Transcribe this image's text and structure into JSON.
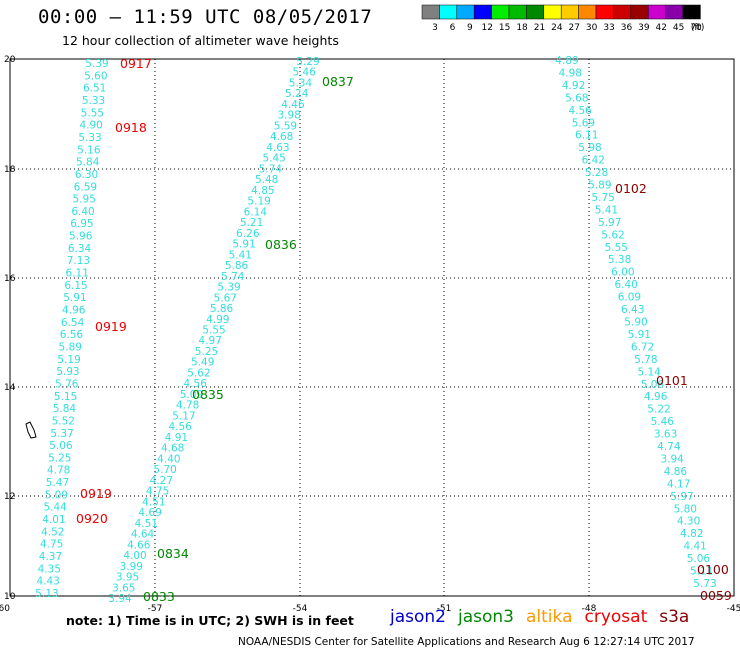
{
  "header": {
    "title": "00:00 – 11:59 UTC 08/05/2017",
    "subtitle": "12 hour collection of altimeter wave heights"
  },
  "color_scale": {
    "unit": "(ft)",
    "bins": [
      {
        "label": "3",
        "color": "#808080"
      },
      {
        "label": "6",
        "color": "#00ffff"
      },
      {
        "label": "9",
        "color": "#00aaff"
      },
      {
        "label": "12",
        "color": "#0000ff"
      },
      {
        "label": "15",
        "color": "#00ee00"
      },
      {
        "label": "18",
        "color": "#00bb00"
      },
      {
        "label": "21",
        "color": "#008800"
      },
      {
        "label": "24",
        "color": "#ffff00"
      },
      {
        "label": "27",
        "color": "#ffcc00"
      },
      {
        "label": "30",
        "color": "#ff8800"
      },
      {
        "label": "33",
        "color": "#ff0000"
      },
      {
        "label": "36",
        "color": "#cc0000"
      },
      {
        "label": "39",
        "color": "#990000"
      },
      {
        "label": "42",
        "color": "#cc00cc"
      },
      {
        "label": "45",
        "color": "#8800aa"
      },
      {
        "label": "70",
        "color": "#000000"
      }
    ]
  },
  "axes": {
    "x_ticks": [
      "-60",
      "-57",
      "-54",
      "-51",
      "-48",
      "-45"
    ],
    "y_ticks": [
      "20",
      "18",
      "16",
      "14",
      "12",
      "10"
    ]
  },
  "tracks": [
    {
      "name": "track-a",
      "color": "#33dddd",
      "values": [
        "5.39",
        "5.60",
        "6.51",
        "5.33",
        "5.55",
        "4.90",
        "5.33",
        "5.16",
        "5.84",
        "6.30",
        "6.59",
        "5.95",
        "6.40",
        "6.95",
        "5.96",
        "6.34",
        "7.13",
        "6.11",
        "6.15",
        "5.91",
        "4.96",
        "6.54",
        "6.56",
        "5.89",
        "5.19",
        "5.93",
        "5.76",
        "5.15",
        "5.84",
        "5.52",
        "5.37",
        "5.06",
        "5.25",
        "4.78",
        "5.47",
        "5.09",
        "5.44",
        "4.01",
        "4.52",
        "4.75",
        "4.37",
        "4.35",
        "4.43",
        "5.13"
      ]
    },
    {
      "name": "track-b",
      "color": "#33dddd",
      "values": [
        "5.29",
        "5.46",
        "5.34",
        "5.24",
        "4.46",
        "3.98",
        "5.59",
        "4.68",
        "4.63",
        "5.45",
        "5.74",
        "5.48",
        "4.85",
        "5.19",
        "6.14",
        "5.21",
        "6.26",
        "5.91",
        "5.41",
        "5.86",
        "5.74",
        "5.39",
        "5.67",
        "5.86",
        "4.99",
        "5.55",
        "4.97",
        "5.25",
        "5.49",
        "5.62",
        "4.56",
        "5.09",
        "4.78",
        "5.17",
        "4.56",
        "4.91",
        "4.68",
        "4.40",
        "5.70",
        "4.27",
        "4.75",
        "4.51",
        "4.69",
        "4.51",
        "4.64",
        "4.66",
        "4.00",
        "3.99",
        "3.95",
        "3.65",
        "3.94"
      ]
    },
    {
      "name": "track-c",
      "color": "#33dddd",
      "values": [
        "4.89",
        "4.98",
        "4.92",
        "5.68",
        "4.56",
        "5.69",
        "6.11",
        "5.98",
        "6.42",
        "5.28",
        "5.89",
        "5.75",
        "5.41",
        "5.97",
        "5.62",
        "5.55",
        "5.38",
        "6.00",
        "6.40",
        "6.09",
        "6.43",
        "5.90",
        "5.91",
        "6.72",
        "5.78",
        "5.14",
        "5.06",
        "4.96",
        "5.22",
        "5.46",
        "3.63",
        "4.74",
        "3.94",
        "4.86",
        "4.17",
        "5.97",
        "5.80",
        "4.30",
        "4.82",
        "4.41",
        "5.06",
        "5.11",
        "5.73"
      ]
    }
  ],
  "time_labels": [
    {
      "text": "0917",
      "color": "#ee0000"
    },
    {
      "text": "0918",
      "color": "#ee0000"
    },
    {
      "text": "0919",
      "color": "#ee0000"
    },
    {
      "text": "0919",
      "color": "#ee0000"
    },
    {
      "text": "0920",
      "color": "#ee0000"
    },
    {
      "text": "0837",
      "color": "#008800"
    },
    {
      "text": "0836",
      "color": "#008800"
    },
    {
      "text": "0835",
      "color": "#008800"
    },
    {
      "text": "0834",
      "color": "#008800"
    },
    {
      "text": "0833",
      "color": "#008800"
    },
    {
      "text": "0102",
      "color": "#880000"
    },
    {
      "text": "0101",
      "color": "#880000"
    },
    {
      "text": "0100",
      "color": "#880000"
    },
    {
      "text": "0059",
      "color": "#880000"
    }
  ],
  "footer": {
    "note": "note: 1) Time is in UTC; 2) SWH is in feet",
    "satellites": [
      {
        "name": "jason2",
        "color": "#0000cc"
      },
      {
        "name": "jason3",
        "color": "#008800"
      },
      {
        "name": "altika",
        "color": "#ff9900"
      },
      {
        "name": "cryosat",
        "color": "#ee0000"
      },
      {
        "name": "s3a",
        "color": "#880000"
      }
    ],
    "credit": "NOAA/NESDIS Center for Satellite Applications and Research    Aug  6 12:27:14 UTC 2017"
  }
}
